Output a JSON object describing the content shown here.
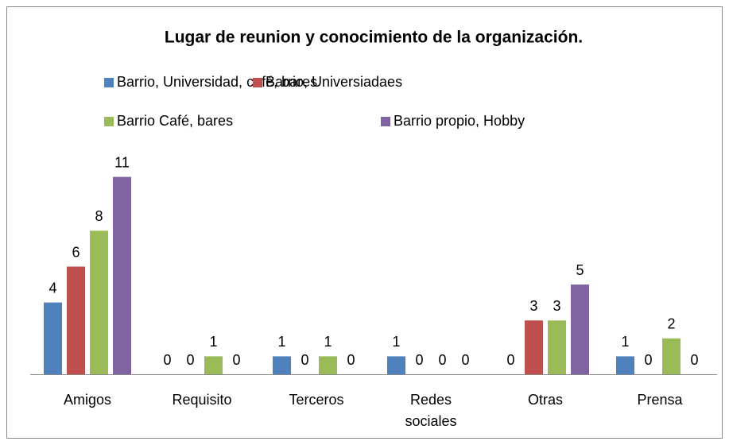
{
  "chart_data": {
    "type": "bar",
    "title": "Lugar de reunion y  conocimiento de la organización.",
    "categories": [
      "Amigos",
      "Requisito",
      "Terceros",
      "Redes sociales",
      "Otras",
      "Prensa"
    ],
    "series": [
      {
        "name": "Barrio, Universidad, café, bares",
        "color": "#4f81bd",
        "values": [
          4,
          0,
          1,
          1,
          0,
          1
        ]
      },
      {
        "name": "Barrio, Universiadaes",
        "color": "#c0504d",
        "values": [
          6,
          0,
          0,
          0,
          3,
          0
        ]
      },
      {
        "name": "Barrio Café, bares",
        "color": "#9bbb59",
        "values": [
          8,
          1,
          1,
          0,
          3,
          2
        ]
      },
      {
        "name": "Barrio propio, Hobby",
        "color": "#8064a2",
        "values": [
          11,
          0,
          0,
          0,
          5,
          0
        ]
      }
    ],
    "ylim": [
      0,
      12
    ]
  }
}
